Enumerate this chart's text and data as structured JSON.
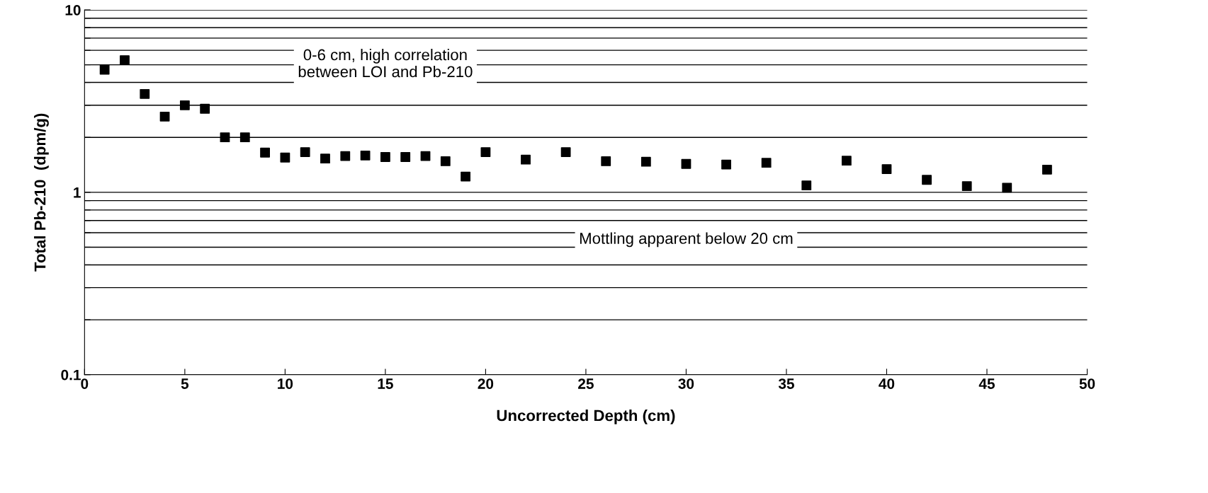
{
  "chart_data": {
    "type": "scatter",
    "xlabel": "Uncorrected Depth (cm)",
    "ylabel": "Total Pb-210  (dpm/g)",
    "x": [
      1,
      2,
      3,
      4,
      5,
      6,
      7,
      8,
      9,
      10,
      11,
      12,
      13,
      14,
      15,
      16,
      17,
      18,
      19,
      20,
      22,
      24,
      26,
      28,
      30,
      32,
      34,
      36,
      38,
      40,
      42,
      44,
      46,
      48
    ],
    "series": [
      {
        "color": "#000000",
        "values": [
          4.7,
          5.3,
          3.46,
          2.6,
          3.0,
          2.87,
          2.0,
          2.0,
          1.65,
          1.55,
          1.66,
          1.53,
          1.58,
          1.59,
          1.56,
          1.56,
          1.58,
          1.48,
          1.22,
          1.66,
          1.51,
          1.66,
          1.48,
          1.47,
          1.43,
          1.42,
          1.45,
          1.09,
          1.49,
          1.34,
          1.17,
          1.08,
          1.06,
          1.33
        ]
      }
    ],
    "marker": "square",
    "log": "y",
    "grid": "y",
    "legend": false,
    "xlim": [
      0,
      50
    ],
    "xticks": [
      0,
      5,
      10,
      15,
      20,
      25,
      30,
      35,
      40,
      45,
      50
    ],
    "ylim": [
      0.1,
      10
    ],
    "yticks": [
      {
        "value": 0.1,
        "label": "0.1"
      },
      {
        "value": 0.2,
        "label": null
      },
      {
        "value": 0.3,
        "label": null
      },
      {
        "value": 0.4,
        "label": null
      },
      {
        "value": 0.5,
        "label": null
      },
      {
        "value": 0.6,
        "label": null
      },
      {
        "value": 0.7,
        "label": null
      },
      {
        "value": 0.8,
        "label": null
      },
      {
        "value": 0.9,
        "label": null
      },
      {
        "value": 1,
        "label": "1"
      },
      {
        "value": 2,
        "label": null
      },
      {
        "value": 3,
        "label": null
      },
      {
        "value": 4,
        "label": null
      },
      {
        "value": 5,
        "label": null
      },
      {
        "value": 6,
        "label": null
      },
      {
        "value": 7,
        "label": null
      },
      {
        "value": 8,
        "label": null
      },
      {
        "value": 9,
        "label": null
      },
      {
        "value": 10,
        "label": "10"
      }
    ],
    "annotations": [
      "0-6 cm, high correlation\nbetween LOI and Pb-210",
      "Mottling apparent below 20 cm"
    ]
  }
}
